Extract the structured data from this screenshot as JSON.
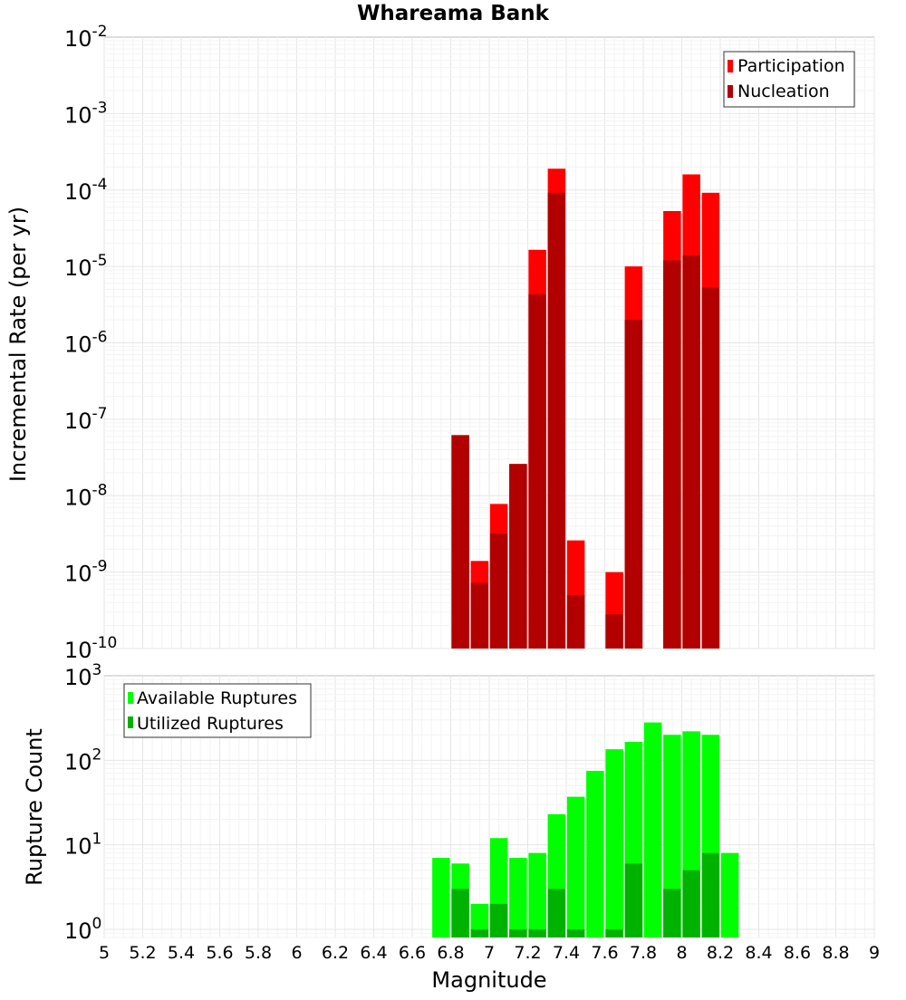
{
  "chart_data": [
    {
      "type": "bar",
      "title": "Whareama Bank",
      "xlabel": "Magnitude",
      "ylabel": "Incremental Rate (per yr)",
      "y_scale": "log",
      "ylim": [
        1e-10,
        0.01
      ],
      "xlim": [
        5,
        9
      ],
      "grid": true,
      "legend_position": "top-right",
      "y_ticks": [
        {
          "base": "10",
          "exp": "-10",
          "value": 1e-10
        },
        {
          "base": "10",
          "exp": "-9",
          "value": 1e-09
        },
        {
          "base": "10",
          "exp": "-8",
          "value": 1e-08
        },
        {
          "base": "10",
          "exp": "-7",
          "value": 1e-07
        },
        {
          "base": "10",
          "exp": "-6",
          "value": 1e-06
        },
        {
          "base": "10",
          "exp": "-5",
          "value": 1e-05
        },
        {
          "base": "10",
          "exp": "-4",
          "value": 0.0001
        },
        {
          "base": "10",
          "exp": "-3",
          "value": 0.001
        },
        {
          "base": "10",
          "exp": "-2",
          "value": 0.01
        }
      ],
      "series": [
        {
          "name": "Participation",
          "color": "#ff0000",
          "points": [
            {
              "x": 6.85,
              "y": 6.2e-08
            },
            {
              "x": 6.95,
              "y": 1.4e-09
            },
            {
              "x": 7.05,
              "y": 7.8e-09
            },
            {
              "x": 7.15,
              "y": 2.6e-08
            },
            {
              "x": 7.25,
              "y": 1.65e-05
            },
            {
              "x": 7.35,
              "y": 0.00019
            },
            {
              "x": 7.45,
              "y": 2.6e-09
            },
            {
              "x": 7.65,
              "y": 1e-09
            },
            {
              "x": 7.75,
              "y": 1e-05
            },
            {
              "x": 7.95,
              "y": 5.3e-05
            },
            {
              "x": 8.05,
              "y": 0.00016
            },
            {
              "x": 8.15,
              "y": 9.2e-05
            }
          ]
        },
        {
          "name": "Nucleation",
          "color": "#b20000",
          "points": [
            {
              "x": 6.85,
              "y": 6.2e-08
            },
            {
              "x": 6.95,
              "y": 7.2e-10
            },
            {
              "x": 7.05,
              "y": 3.2e-09
            },
            {
              "x": 7.15,
              "y": 2.6e-08
            },
            {
              "x": 7.25,
              "y": 4.3e-06
            },
            {
              "x": 7.35,
              "y": 9.2e-05
            },
            {
              "x": 7.45,
              "y": 5e-10
            },
            {
              "x": 7.65,
              "y": 2.8e-10
            },
            {
              "x": 7.75,
              "y": 2e-06
            },
            {
              "x": 7.95,
              "y": 1.2e-05
            },
            {
              "x": 8.05,
              "y": 1.4e-05
            },
            {
              "x": 8.15,
              "y": 5.3e-06
            }
          ]
        }
      ]
    },
    {
      "type": "bar",
      "xlabel": "Magnitude",
      "ylabel": "Rupture Count",
      "y_scale": "log",
      "ylim": [
        0.8,
        1000
      ],
      "xlim": [
        5,
        9
      ],
      "grid": true,
      "legend_position": "top-left",
      "x_ticks": [
        "5",
        "5.2",
        "5.4",
        "5.6",
        "5.8",
        "6",
        "6.2",
        "6.4",
        "6.6",
        "6.8",
        "7",
        "7.2",
        "7.4",
        "7.6",
        "7.8",
        "8",
        "8.2",
        "8.4",
        "8.6",
        "8.8",
        "9"
      ],
      "y_ticks": [
        {
          "base": "10",
          "exp": "0",
          "value": 1
        },
        {
          "base": "10",
          "exp": "1",
          "value": 10
        },
        {
          "base": "10",
          "exp": "2",
          "value": 100
        },
        {
          "base": "10",
          "exp": "3",
          "value": 1000
        }
      ],
      "series": [
        {
          "name": "Available Ruptures",
          "color": "#00ff00",
          "points": [
            {
              "x": 6.75,
              "y": 7
            },
            {
              "x": 6.85,
              "y": 6
            },
            {
              "x": 6.95,
              "y": 2
            },
            {
              "x": 7.05,
              "y": 12
            },
            {
              "x": 7.15,
              "y": 7
            },
            {
              "x": 7.25,
              "y": 8
            },
            {
              "x": 7.35,
              "y": 23
            },
            {
              "x": 7.45,
              "y": 37
            },
            {
              "x": 7.55,
              "y": 75
            },
            {
              "x": 7.65,
              "y": 135
            },
            {
              "x": 7.75,
              "y": 165
            },
            {
              "x": 7.85,
              "y": 280
            },
            {
              "x": 7.95,
              "y": 200
            },
            {
              "x": 8.05,
              "y": 220
            },
            {
              "x": 8.15,
              "y": 200
            },
            {
              "x": 8.25,
              "y": 8
            }
          ]
        },
        {
          "name": "Utilized Ruptures",
          "color": "#00b200",
          "points": [
            {
              "x": 6.85,
              "y": 3
            },
            {
              "x": 6.95,
              "y": 1
            },
            {
              "x": 7.05,
              "y": 2
            },
            {
              "x": 7.15,
              "y": 1
            },
            {
              "x": 7.25,
              "y": 1
            },
            {
              "x": 7.35,
              "y": 3
            },
            {
              "x": 7.45,
              "y": 1
            },
            {
              "x": 7.65,
              "y": 1
            },
            {
              "x": 7.75,
              "y": 6
            },
            {
              "x": 7.95,
              "y": 3
            },
            {
              "x": 8.05,
              "y": 5
            },
            {
              "x": 8.15,
              "y": 8
            }
          ]
        }
      ]
    }
  ]
}
